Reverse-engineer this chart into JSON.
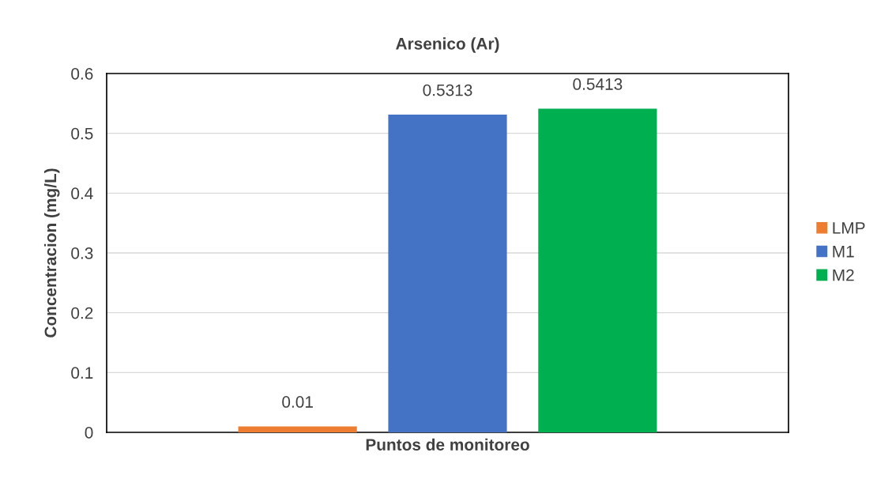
{
  "chart_data": {
    "type": "bar",
    "title": "Arsenico (Ar)",
    "xlabel": "Puntos de monitoreo",
    "ylabel": "Concentracion (mg/L)",
    "categories": [
      null
    ],
    "series": [
      {
        "name": "LMP",
        "color": "#ed7d31",
        "values": [
          0.01
        ]
      },
      {
        "name": "M1",
        "color": "#4472c4",
        "values": [
          0.5313
        ]
      },
      {
        "name": "M2",
        "color": "#00b050",
        "values": [
          0.5413
        ]
      }
    ],
    "ylim": [
      0,
      0.6
    ],
    "yticks": [
      0,
      0.1,
      0.2,
      0.3,
      0.4,
      0.5,
      0.6
    ],
    "grid": "y",
    "legend": "right",
    "data_labels": true
  }
}
